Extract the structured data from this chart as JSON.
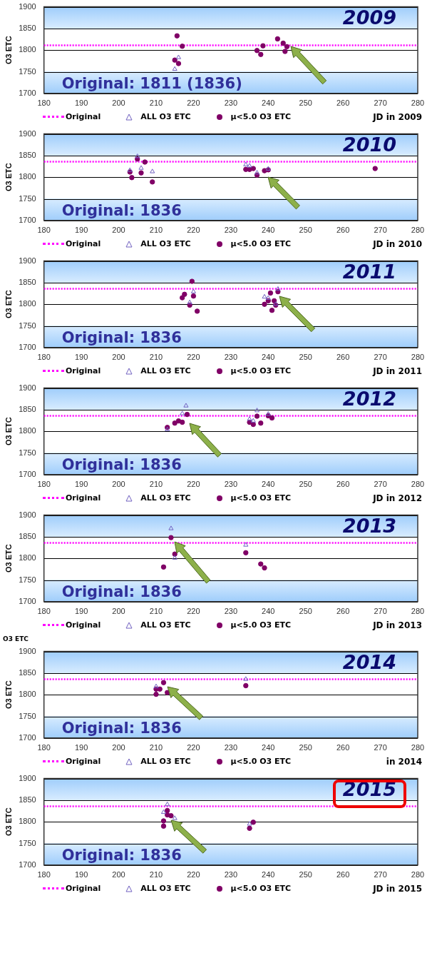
{
  "chart_data": [
    {
      "type": "scatter",
      "title": "2009",
      "xlabel": "JD in 2009",
      "ylabel": "O3 ETC",
      "annotations": [
        "Original: 1811 (1836)"
      ],
      "xlim": [
        180,
        280
      ],
      "xticks": [
        180,
        190,
        200,
        210,
        220,
        230,
        240,
        250,
        260,
        270,
        280
      ],
      "ylim": [
        1700,
        1900
      ],
      "yticks": [
        1700,
        1750,
        1800,
        1850,
        1900
      ],
      "grid": "y",
      "legend": "bottom",
      "ref_lines": [
        {
          "axis": "y",
          "value": 1811,
          "label": "Original",
          "color": "#ff00ff",
          "line_style": "dotted"
        }
      ],
      "series": [
        {
          "name": "ALL O3 ETC",
          "color": "#7060c0",
          "marker": "triangle",
          "x": [
            216,
            215
          ],
          "values": [
            1783,
            1756
          ]
        },
        {
          "name": "μ<5.0 O3 ETC",
          "color": "#800066",
          "marker": "circle",
          "x": [
            215.6,
            217,
            215,
            216,
            237,
            238,
            238.6,
            242.5,
            244,
            245,
            244.5
          ],
          "values": [
            1833,
            1809,
            1777,
            1769,
            1799,
            1790,
            1810,
            1826,
            1816,
            1808,
            1797
          ]
        }
      ]
    },
    {
      "type": "scatter",
      "title": "2010",
      "xlabel": "JD in 2010",
      "ylabel": "O3 ETC",
      "annotations": [
        "Original: 1836"
      ],
      "xlim": [
        180,
        280
      ],
      "xticks": [
        180,
        190,
        200,
        210,
        220,
        230,
        240,
        250,
        260,
        270,
        280
      ],
      "ylim": [
        1700,
        1900
      ],
      "yticks": [
        1700,
        1750,
        1800,
        1850,
        1900
      ],
      "grid": "y",
      "legend": "bottom",
      "ref_lines": [
        {
          "axis": "y",
          "value": 1836,
          "label": "Original",
          "color": "#ff00ff",
          "line_style": "dotted"
        }
      ],
      "series": [
        {
          "name": "ALL O3 ETC",
          "color": "#7060c0",
          "marker": "triangle",
          "x": [
            205,
            203,
            206,
            209,
            234,
            235,
            237,
            240
          ],
          "values": [
            1848,
            1816,
            1821,
            1813,
            1829,
            1826,
            1810,
            1819
          ]
        },
        {
          "name": "μ<5.0 O3 ETC",
          "color": "#800066",
          "marker": "circle",
          "x": [
            205,
            207,
            203,
            203.5,
            206,
            209,
            234,
            235,
            236,
            237,
            239,
            240,
            268.6
          ],
          "values": [
            1842,
            1835,
            1812,
            1799,
            1810,
            1789,
            1818,
            1818,
            1820,
            1805,
            1815,
            1817,
            1820
          ]
        }
      ]
    },
    {
      "type": "scatter",
      "title": "2011",
      "xlabel": "JD in 2011",
      "ylabel": "O3 ETC",
      "annotations": [
        "Original: 1836"
      ],
      "xlim": [
        180,
        280
      ],
      "xticks": [
        180,
        190,
        200,
        210,
        220,
        230,
        240,
        250,
        260,
        270,
        280
      ],
      "ylim": [
        1700,
        1900
      ],
      "yticks": [
        1700,
        1750,
        1800,
        1850,
        1900
      ],
      "grid": "y",
      "legend": "bottom",
      "ref_lines": [
        {
          "axis": "y",
          "value": 1836,
          "label": "Original",
          "color": "#ff00ff",
          "line_style": "dotted"
        }
      ],
      "series": [
        {
          "name": "ALL O3 ETC",
          "color": "#7060c0",
          "marker": "triangle",
          "x": [
            220,
            219,
            239,
            240,
            242.6,
            242
          ],
          "values": [
            1829,
            1804,
            1817,
            1814,
            1835,
            1800
          ]
        },
        {
          "name": "μ<5.0 O3 ETC",
          "color": "#800066",
          "marker": "circle",
          "x": [
            219.6,
            217.6,
            217,
            220,
            219,
            221,
            240.6,
            242.6,
            240,
            241.6,
            239,
            242,
            241
          ],
          "values": [
            1853,
            1823,
            1815,
            1819,
            1798,
            1784,
            1826,
            1829,
            1808,
            1808,
            1800,
            1798,
            1786
          ]
        }
      ]
    },
    {
      "type": "scatter",
      "title": "2012",
      "xlabel": "JD in 2012",
      "ylabel": "O3 ETC",
      "annotations": [
        "Original: 1836"
      ],
      "xlim": [
        180,
        280
      ],
      "xticks": [
        180,
        190,
        200,
        210,
        220,
        230,
        240,
        250,
        260,
        270,
        280
      ],
      "ylim": [
        1700,
        1900
      ],
      "yticks": [
        1700,
        1750,
        1800,
        1850,
        1900
      ],
      "grid": "y",
      "legend": "bottom",
      "ref_lines": [
        {
          "axis": "y",
          "value": 1836,
          "label": "Original",
          "color": "#ff00ff",
          "line_style": "dotted"
        }
      ],
      "series": [
        {
          "name": "ALL O3 ETC",
          "color": "#7060c0",
          "marker": "triangle",
          "x": [
            218,
            217,
            213,
            237,
            235,
            236,
            240
          ],
          "values": [
            1859,
            1841,
            1804,
            1848,
            1828,
            1824,
            1840
          ]
        },
        {
          "name": "μ<5.0 O3 ETC",
          "color": "#800066",
          "marker": "circle",
          "x": [
            213,
            215,
            216,
            217,
            218.3,
            237,
            235,
            236,
            238,
            240,
            241
          ],
          "values": [
            1809,
            1819,
            1824,
            1821,
            1839,
            1835,
            1821,
            1816,
            1819,
            1836,
            1831
          ]
        }
      ]
    },
    {
      "type": "scatter",
      "title": "2013",
      "xlabel": "JD in 2013",
      "ylabel": "O3 ETC",
      "annotations": [
        "Original: 1836"
      ],
      "xlim": [
        180,
        280
      ],
      "xticks": [
        180,
        190,
        200,
        210,
        220,
        230,
        240,
        250,
        260,
        270,
        280
      ],
      "ylim": [
        1700,
        1900
      ],
      "yticks": [
        1700,
        1750,
        1800,
        1850,
        1900
      ],
      "grid": "y",
      "legend": "bottom",
      "ref_lines": [
        {
          "axis": "y",
          "value": 1836,
          "label": "Original",
          "color": "#ff00ff",
          "line_style": "dotted"
        }
      ],
      "series": [
        {
          "name": "ALL O3 ETC",
          "color": "#7060c0",
          "marker": "triangle",
          "x": [
            214,
            215,
            234
          ],
          "values": [
            1869,
            1801,
            1831
          ]
        },
        {
          "name": "μ<5.0 O3 ETC",
          "color": "#800066",
          "marker": "circle",
          "x": [
            214,
            215,
            212,
            234,
            238,
            239
          ],
          "values": [
            1848,
            1810,
            1780,
            1813,
            1787,
            1778
          ]
        }
      ]
    },
    {
      "type": "scatter",
      "title": "2014",
      "subtitle": "O3 ETC",
      "xlabel": "in 2014",
      "ylabel": "O3 ETC",
      "annotations": [
        "Original: 1836"
      ],
      "xlim": [
        180,
        280
      ],
      "xticks": [
        180,
        190,
        200,
        210,
        220,
        230,
        240,
        250,
        260,
        270,
        280
      ],
      "ylim": [
        1700,
        1900
      ],
      "yticks": [
        1700,
        1750,
        1800,
        1850,
        1900
      ],
      "grid": "y",
      "legend": "bottom",
      "ref_lines": [
        {
          "axis": "y",
          "value": 1836,
          "label": "Original",
          "color": "#ff00ff",
          "line_style": "dotted"
        }
      ],
      "series": [
        {
          "name": "ALL O3 ETC",
          "color": "#7060c0",
          "marker": "triangle",
          "x": [
            210,
            234
          ],
          "values": [
            1819,
            1836
          ]
        },
        {
          "name": "μ<5.0 O3 ETC",
          "color": "#800066",
          "marker": "circle",
          "x": [
            212,
            210,
            211,
            210,
            213,
            234
          ],
          "values": [
            1828,
            1813,
            1813,
            1801,
            1805,
            1821
          ]
        }
      ]
    },
    {
      "type": "scatter",
      "title": "2015",
      "xlabel": "JD in 2015",
      "ylabel": "O3 ETC",
      "annotations": [
        "Original: 1836"
      ],
      "xlim": [
        180,
        280
      ],
      "xticks": [
        180,
        190,
        200,
        210,
        220,
        230,
        240,
        250,
        260,
        270,
        280
      ],
      "ylim": [
        1700,
        1900
      ],
      "yticks": [
        1700,
        1750,
        1800,
        1850,
        1900
      ],
      "grid": "y",
      "legend": "bottom",
      "ref_lines": [
        {
          "axis": "y",
          "value": 1836,
          "label": "Original",
          "color": "#ff00ff",
          "line_style": "dotted"
        }
      ],
      "series": [
        {
          "name": "ALL O3 ETC",
          "color": "#7060c0",
          "marker": "triangle",
          "x": [
            213,
            212,
            215,
            235
          ],
          "values": [
            1840,
            1822,
            1808,
            1795
          ]
        },
        {
          "name": "μ<5.0 O3 ETC",
          "color": "#800066",
          "marker": "circle",
          "x": [
            213,
            213,
            214,
            212,
            212,
            235,
            236
          ],
          "values": [
            1826,
            1816,
            1814,
            1802,
            1790,
            1785,
            1799
          ]
        }
      ]
    }
  ]
}
